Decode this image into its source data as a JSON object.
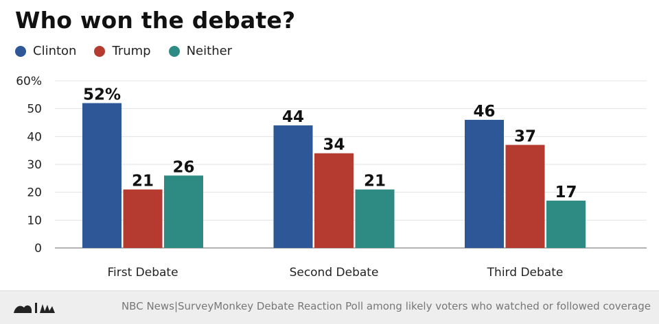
{
  "chart_data": {
    "type": "bar",
    "title": "Who won the debate?",
    "categories": [
      "First Debate",
      "Second Debate",
      "Third Debate"
    ],
    "series": [
      {
        "name": "Clinton",
        "color": "#2d5796",
        "values": [
          52,
          44,
          46
        ]
      },
      {
        "name": "Trump",
        "color": "#b53a30",
        "values": [
          21,
          34,
          37
        ]
      },
      {
        "name": "Neither",
        "color": "#2e8b83",
        "values": [
          26,
          21,
          17
        ]
      }
    ],
    "data_labels": [
      [
        "52%",
        "21",
        "26"
      ],
      [
        "44",
        "34",
        "21"
      ],
      [
        "46",
        "37",
        "17"
      ]
    ],
    "ylim": [
      0,
      60
    ],
    "yticks": [
      0,
      10,
      20,
      30,
      40,
      50,
      60
    ],
    "ytick_labels": [
      "0",
      "10",
      "20",
      "30",
      "40",
      "50",
      "60%"
    ],
    "grid": true,
    "legend_position": "top-left",
    "xlabel": "",
    "ylabel": ""
  },
  "footer": {
    "logo_icon": "nbc-peacock-logo-icon",
    "source": "NBC News|SurveyMonkey Debate Reaction Poll among likely voters who watched or followed coverage"
  }
}
